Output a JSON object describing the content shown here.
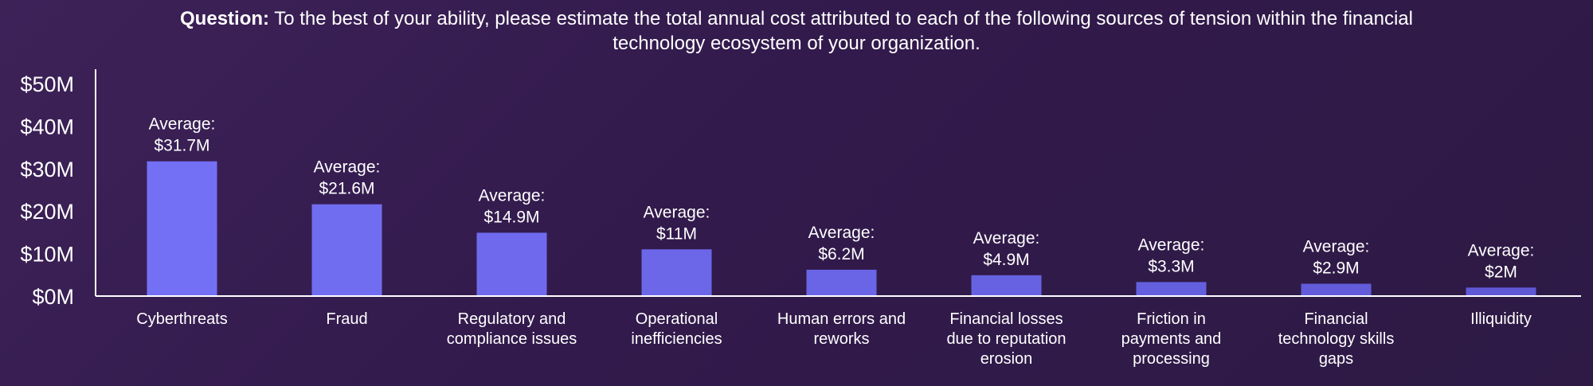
{
  "question": {
    "label": "Question:",
    "text": "To the best of your ability, please estimate the total annual cost attributed to each of the following sources of tension within the financial technology ecosystem of your organization."
  },
  "colors": {
    "background": "#321a4c",
    "bar_light": "#7470f5",
    "bar_dark": "#5f59d6",
    "axis": "#ffffff",
    "text": "#ffffff"
  },
  "chart_data": {
    "type": "bar",
    "title": "",
    "xlabel": "",
    "ylabel": "",
    "ylim": [
      0,
      50
    ],
    "grid": false,
    "y_ticks": [
      "$0M",
      "$10M",
      "$20M",
      "$30M",
      "$40M",
      "$50M"
    ],
    "categories": [
      [
        "Cyberthreats"
      ],
      [
        "Fraud"
      ],
      [
        "Regulatory and",
        "compliance issues"
      ],
      [
        "Operational",
        "inefficiencies"
      ],
      [
        "Human errors and",
        "reworks"
      ],
      [
        "Financial losses",
        "due to reputation",
        "erosion"
      ],
      [
        "Friction in",
        "payments and",
        "processing"
      ],
      [
        "Financial",
        "technology skills",
        "gaps"
      ],
      [
        "Illiquidity"
      ]
    ],
    "values": [
      31.7,
      21.6,
      14.9,
      11,
      6.2,
      4.9,
      3.3,
      2.9,
      2
    ],
    "data_labels": [
      [
        "Average:",
        "$31.7M"
      ],
      [
        "Average:",
        "$21.6M"
      ],
      [
        "Average:",
        "$14.9M"
      ],
      [
        "Average:",
        "$11M"
      ],
      [
        "Average:",
        "$6.2M"
      ],
      [
        "Average:",
        "$4.9M"
      ],
      [
        "Average:",
        "$3.3M"
      ],
      [
        "Average:",
        "$2.9M"
      ],
      [
        "Average:",
        "$2M"
      ]
    ]
  }
}
